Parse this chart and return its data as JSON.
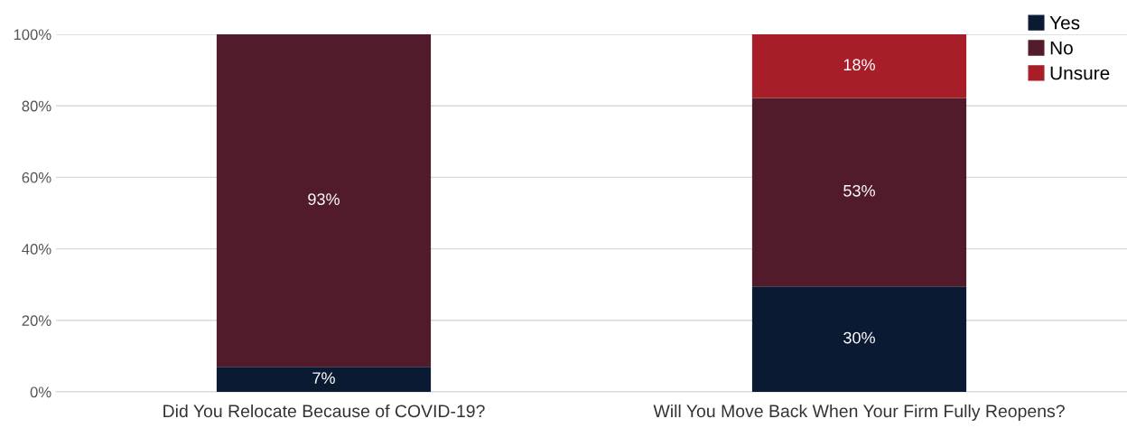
{
  "chart_data": {
    "type": "bar",
    "stacked": true,
    "categories": [
      "Did You Relocate Because of COVID-19?",
      "Will You Move Back When Your Firm Fully Reopens?"
    ],
    "series": [
      {
        "name": "Yes",
        "color": "#0b1a33",
        "values": [
          7,
          29.5
        ],
        "value_labels": [
          "7%",
          "30%"
        ]
      },
      {
        "name": "No",
        "color": "#521b2b",
        "values": [
          93,
          52.7
        ],
        "value_labels": [
          "93%",
          "53%"
        ]
      },
      {
        "name": "Unsure",
        "color": "#a81e28",
        "values": [
          null,
          17.8
        ],
        "value_labels": [
          null,
          "18%"
        ]
      }
    ],
    "ylim": [
      0,
      100
    ],
    "yticks": [
      {
        "value": 0,
        "label": "0%"
      },
      {
        "value": 20,
        "label": "20%"
      },
      {
        "value": 40,
        "label": "40%"
      },
      {
        "value": 60,
        "label": "60%"
      },
      {
        "value": 80,
        "label": "80%"
      },
      {
        "value": 100,
        "label": "100%"
      }
    ],
    "grid": "y",
    "legend": "top right"
  }
}
